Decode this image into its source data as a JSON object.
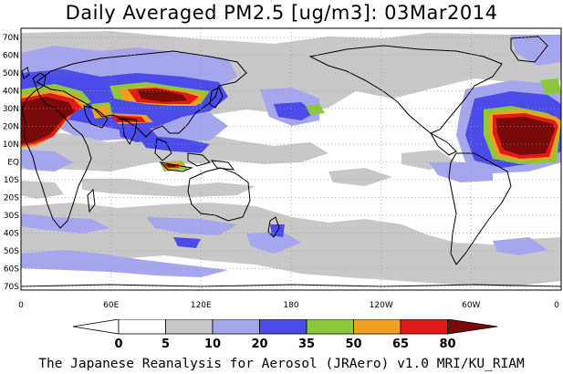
{
  "title": "Daily Averaged PM2.5 [ug/m3]: 03Mar2014",
  "credit": "The Japanese Reanalysis for Aerosol (JRAero) v1.0 MRI/KU_RIAM",
  "lat_labels": [
    "70N",
    "60N",
    "50N",
    "40N",
    "30N",
    "20N",
    "10N",
    "EQ",
    "10S",
    "20S",
    "30S",
    "40S",
    "50S",
    "60S",
    "70S"
  ],
  "lon_labels": [
    "0",
    "60E",
    "120E",
    "180",
    "120W",
    "60W",
    "0"
  ],
  "colorbar": {
    "levels": [
      "0",
      "5",
      "10",
      "20",
      "35",
      "50",
      "65",
      "80"
    ],
    "colors": [
      "#ffffff",
      "#c8c8c8",
      "#a6a6ee",
      "#4b4bea",
      "#8cc83c",
      "#f0a020",
      "#e01a14",
      "#7a0a0a"
    ]
  },
  "colors": {
    "level_5": "#c8c8c8",
    "level_10": "#a6a6ee",
    "level_20": "#4b4bea",
    "level_35": "#8cc83c",
    "level_50": "#f0a020",
    "level_65": "#e01a14",
    "level_80": "#7a0a0a",
    "coastline": "#000000",
    "grid": "#9a9a9a"
  }
}
